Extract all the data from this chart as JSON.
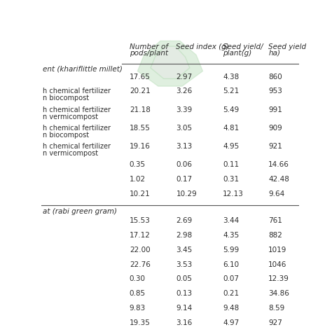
{
  "col_headers_line1": [
    "Number of",
    "Seed index (g)",
    "Seed yield/",
    "Seed yield"
  ],
  "col_headers_line2": [
    "pods/plant",
    "",
    "plant(g)",
    "ha)"
  ],
  "section1_header": "ent (khariflittle millet)",
  "section2_header": "at (rabi green gram)",
  "rows_section1": [
    {
      "label": "",
      "label2": "",
      "values": [
        "17.65",
        "2.97",
        "4.38",
        "860"
      ]
    },
    {
      "label": "h chemical fertilizer",
      "label2": "n biocompost",
      "values": [
        "20.21",
        "3.26",
        "5.21",
        "953"
      ]
    },
    {
      "label": "h chemical fertilizer",
      "label2": "n vermicompost",
      "values": [
        "21.18",
        "3.39",
        "5.49",
        "991"
      ]
    },
    {
      "label": "h chemical fertilizer",
      "label2": "n biocompost",
      "values": [
        "18.55",
        "3.05",
        "4.81",
        "909"
      ]
    },
    {
      "label": "h chemical fertilizer",
      "label2": "n vermicompost",
      "values": [
        "19.16",
        "3.13",
        "4.95",
        "921"
      ]
    },
    {
      "label": "",
      "label2": "",
      "values": [
        "0.35",
        "0.06",
        "0.11",
        "14.66"
      ]
    },
    {
      "label": "",
      "label2": "",
      "values": [
        "1.02",
        "0.17",
        "0.31",
        "42.48"
      ]
    },
    {
      "label": "",
      "label2": "",
      "values": [
        "10.21",
        "10.29",
        "12.13",
        "9.64"
      ]
    }
  ],
  "rows_section2": [
    {
      "label": "",
      "label2": "",
      "values": [
        "15.53",
        "2.69",
        "3.44",
        "761"
      ]
    },
    {
      "label": "",
      "label2": "",
      "values": [
        "17.12",
        "2.98",
        "4.35",
        "882"
      ]
    },
    {
      "label": "",
      "label2": "",
      "values": [
        "22.00",
        "3.45",
        "5.99",
        "1019"
      ]
    },
    {
      "label": "",
      "label2": "",
      "values": [
        "22.76",
        "3.53",
        "6.10",
        "1046"
      ]
    },
    {
      "label": "",
      "label2": "",
      "values": [
        "0.30",
        "0.05",
        "0.07",
        "12.39"
      ]
    },
    {
      "label": "",
      "label2": "",
      "values": [
        "0.85",
        "0.13",
        "0.21",
        "34.86"
      ]
    },
    {
      "label": "",
      "label2": "",
      "values": [
        "9.83",
        "9.14",
        "9.48",
        "8.59"
      ]
    },
    {
      "label": "",
      "label2": "",
      "values": [
        "19.35",
        "3.16",
        "4.97",
        "927"
      ]
    }
  ],
  "bg_color": "#ffffff",
  "text_color": "#2d2d2d",
  "line_color": "#555555",
  "watermark_color": "#b8ddb8"
}
